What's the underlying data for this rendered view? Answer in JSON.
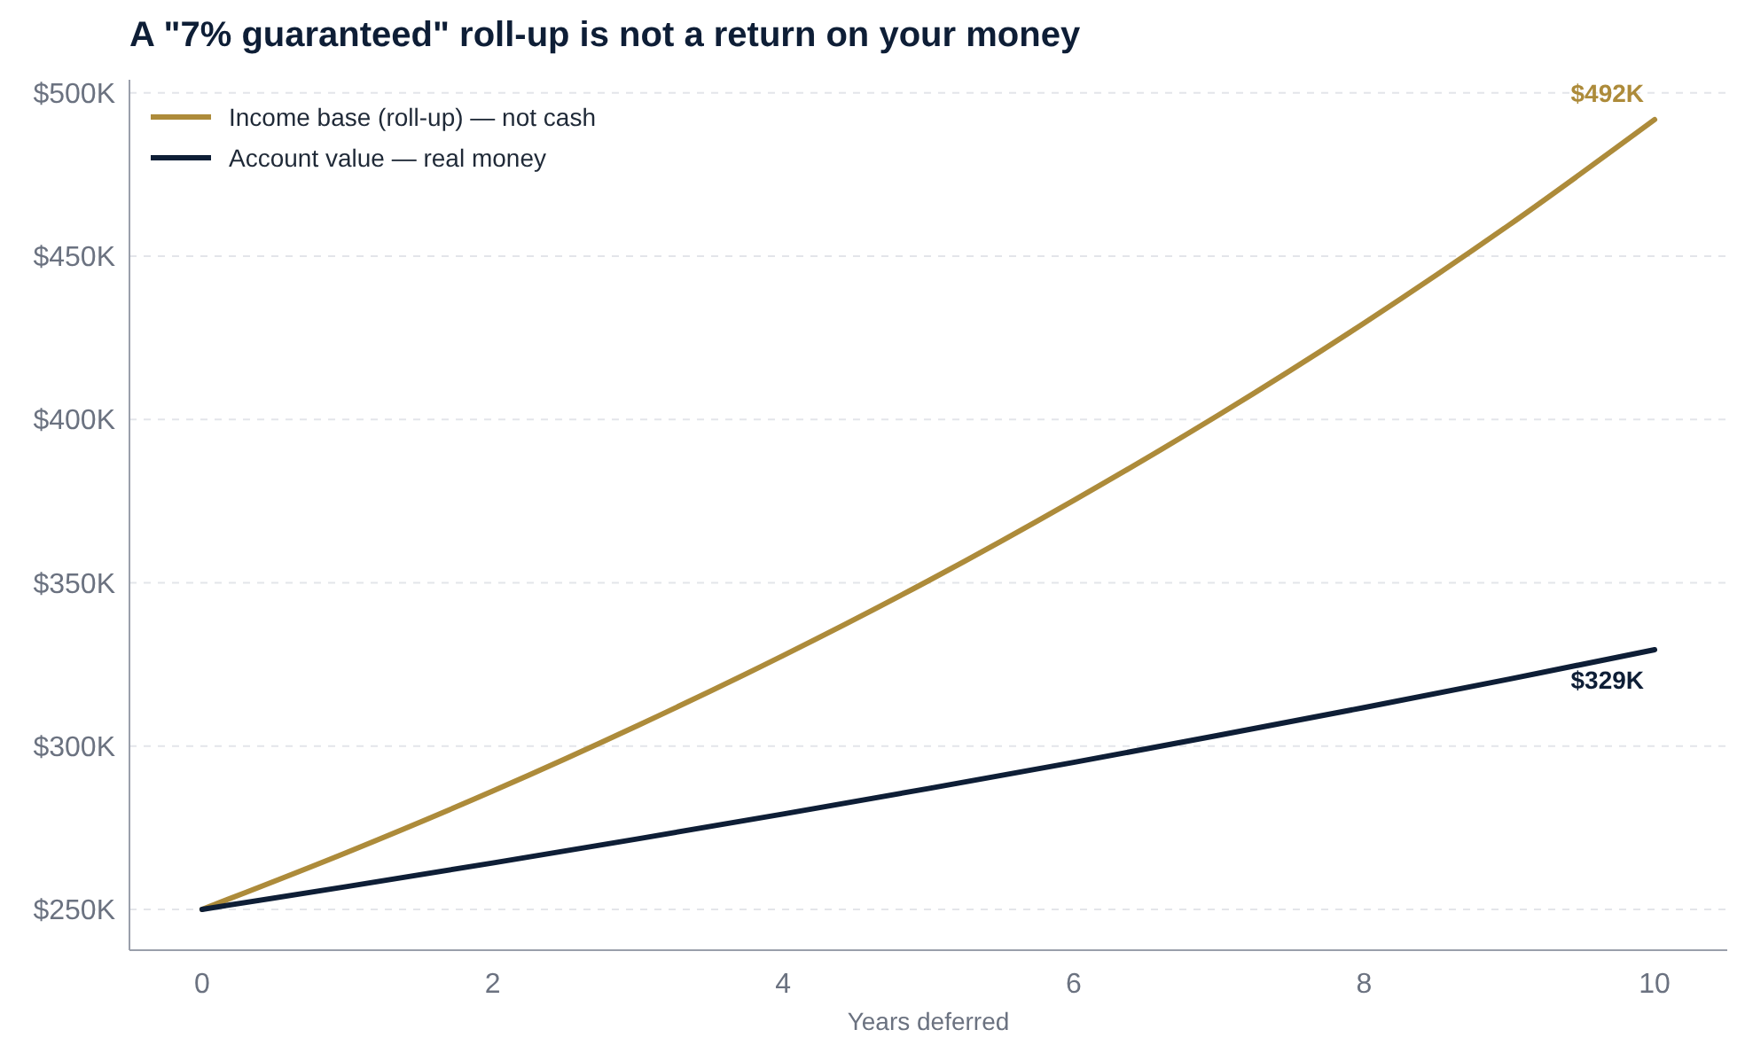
{
  "chart_data": {
    "type": "line",
    "title": "A \"7% guaranteed\" roll-up is not a return on your money",
    "xlabel": "Years deferred",
    "x": [
      0,
      1,
      2,
      3,
      4,
      5,
      6,
      7,
      8,
      9,
      10
    ],
    "series": [
      {
        "name": "Income base (roll-up) — not cash",
        "color": "#ad8b3a",
        "values": [
          250000,
          267500,
          286200,
          306300,
          327700,
          350600,
          375200,
          401400,
          429500,
          459600,
          491800
        ]
      },
      {
        "name": "Account value — real money",
        "color": "#0e1e36",
        "values": [
          250000,
          257000,
          264200,
          271600,
          279200,
          287000,
          295000,
          303300,
          311800,
          320500,
          329500
        ]
      }
    ],
    "xlim": [
      -0.5,
      10.5
    ],
    "xticks": [
      0,
      2,
      4,
      6,
      8,
      10
    ],
    "ylim": [
      237500,
      504000
    ],
    "yticks": [
      {
        "value": 250000,
        "label": "$250K"
      },
      {
        "value": 300000,
        "label": "$300K"
      },
      {
        "value": 350000,
        "label": "$350K"
      },
      {
        "value": 400000,
        "label": "$400K"
      },
      {
        "value": 450000,
        "label": "$450K"
      },
      {
        "value": 500000,
        "label": "$500K"
      }
    ],
    "annotations": [
      {
        "text": "$492K",
        "x": 10,
        "y": 491800
      },
      {
        "text": "$329K",
        "x": 10,
        "y": 329500
      }
    ],
    "grid": "y",
    "legend": "top left",
    "marker": "none",
    "line_style": "solid"
  }
}
